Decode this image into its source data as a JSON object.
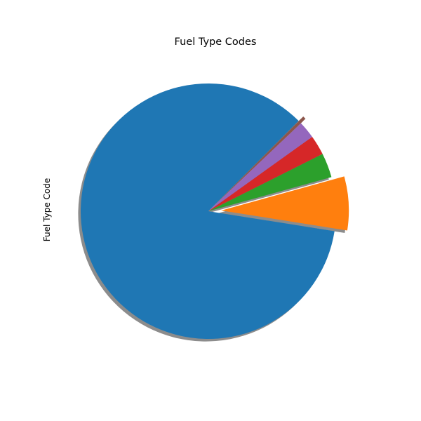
{
  "chart_data": {
    "type": "pie",
    "title": "Fuel Type Codes",
    "ylabel": "Fuel Type Code",
    "start_angle_deg": 45,
    "shadow": true,
    "slices": [
      {
        "value": 85.0,
        "color": "#1f77b4",
        "explode": 0.0
      },
      {
        "value": 6.8,
        "color": "#ff7f0e",
        "explode": 0.1
      },
      {
        "value": 3.1,
        "color": "#2ca02c",
        "explode": 0.0
      },
      {
        "value": 2.5,
        "color": "#d62728",
        "explode": 0.0
      },
      {
        "value": 2.2,
        "color": "#9467bd",
        "explode": 0.0
      },
      {
        "value": 0.4,
        "color": "#8c564b",
        "explode": 0.05
      }
    ]
  }
}
